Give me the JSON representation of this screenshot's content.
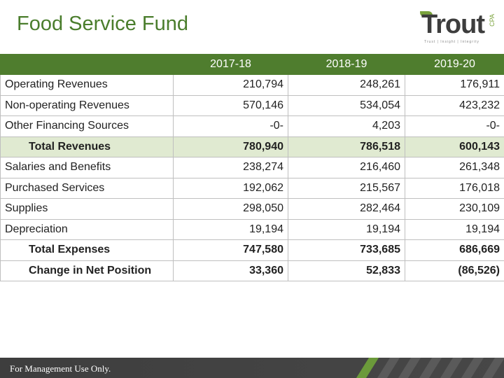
{
  "header": {
    "title": "Food Service Fund"
  },
  "logo": {
    "name": "Trout",
    "suffix": "CPA",
    "tagline": "Trust | Insight | Integrity"
  },
  "table": {
    "columns": [
      "2017-18",
      "2018-19",
      "2019-20"
    ],
    "rows": [
      {
        "label": "Operating Revenues",
        "values": [
          "210,794",
          "248,261",
          "176,911"
        ],
        "style": "normal"
      },
      {
        "label": "Non-operating Revenues",
        "values": [
          "570,146",
          "534,054",
          "423,232"
        ],
        "style": "normal"
      },
      {
        "label": "Other Financing Sources",
        "values": [
          "-0-",
          "4,203",
          "-0-"
        ],
        "style": "normal"
      },
      {
        "label": "Total Revenues",
        "values": [
          "780,940",
          "786,518",
          "600,143"
        ],
        "style": "total"
      },
      {
        "label": "Salaries and Benefits",
        "values": [
          "238,274",
          "216,460",
          "261,348"
        ],
        "style": "normal"
      },
      {
        "label": "Purchased Services",
        "values": [
          "192,062",
          "215,567",
          "176,018"
        ],
        "style": "normal"
      },
      {
        "label": "Supplies",
        "values": [
          "298,050",
          "282,464",
          "230,109"
        ],
        "style": "normal"
      },
      {
        "label": "Depreciation",
        "values": [
          "19,194",
          "19,194",
          "19,194"
        ],
        "style": "normal"
      },
      {
        "label": "Total Expenses",
        "values": [
          "747,580",
          "733,685",
          "686,669"
        ],
        "style": "sub"
      },
      {
        "label": "Change in Net Position",
        "values": [
          "33,360",
          "52,833",
          "(86,526)"
        ],
        "style": "sub"
      }
    ]
  },
  "footer": {
    "text": "For Management Use Only."
  },
  "colors": {
    "accent": "#4f7d2e",
    "title": "#4a7d2c",
    "total_row": "#e0ead1",
    "footer": "#3e3e3e"
  }
}
